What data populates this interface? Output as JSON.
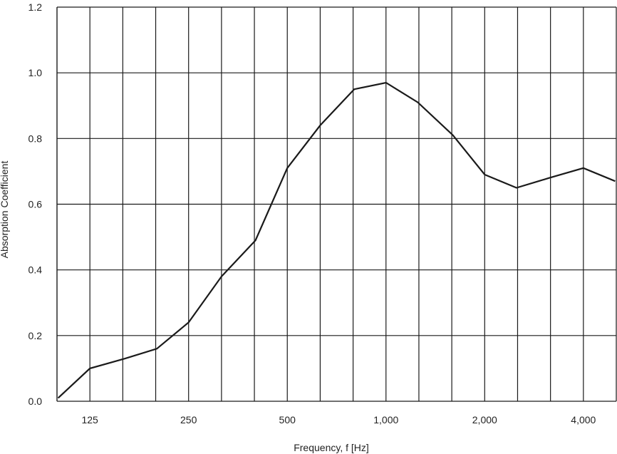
{
  "chart_data": {
    "type": "line",
    "xlabel": "Frequency, f [Hz]",
    "ylabel": "Absorption Coefficient",
    "ylim": [
      0,
      1.2
    ],
    "y_ticks": [
      "0.0",
      "0.2",
      "0.4",
      "0.6",
      "0.8",
      "1.0",
      "1.2"
    ],
    "x_scale": "log (one-third octave bands)",
    "x_ticks": [
      "125",
      "250",
      "500",
      "1,000",
      "2,000",
      "4,000"
    ],
    "x_tick_values": [
      125,
      250,
      500,
      1000,
      2000,
      4000
    ],
    "grid": true,
    "series": [
      {
        "color": "#1a1a1a",
        "x": [
          100,
          125,
          160,
          200,
          250,
          315,
          400,
          500,
          630,
          800,
          1000,
          1250,
          1600,
          2000,
          2500,
          3150,
          4000,
          5000
        ],
        "y": [
          0.01,
          0.1,
          0.13,
          0.16,
          0.24,
          0.38,
          0.49,
          0.71,
          0.84,
          0.95,
          0.97,
          0.91,
          0.81,
          0.69,
          0.65,
          0.68,
          0.71,
          0.67
        ]
      }
    ]
  }
}
